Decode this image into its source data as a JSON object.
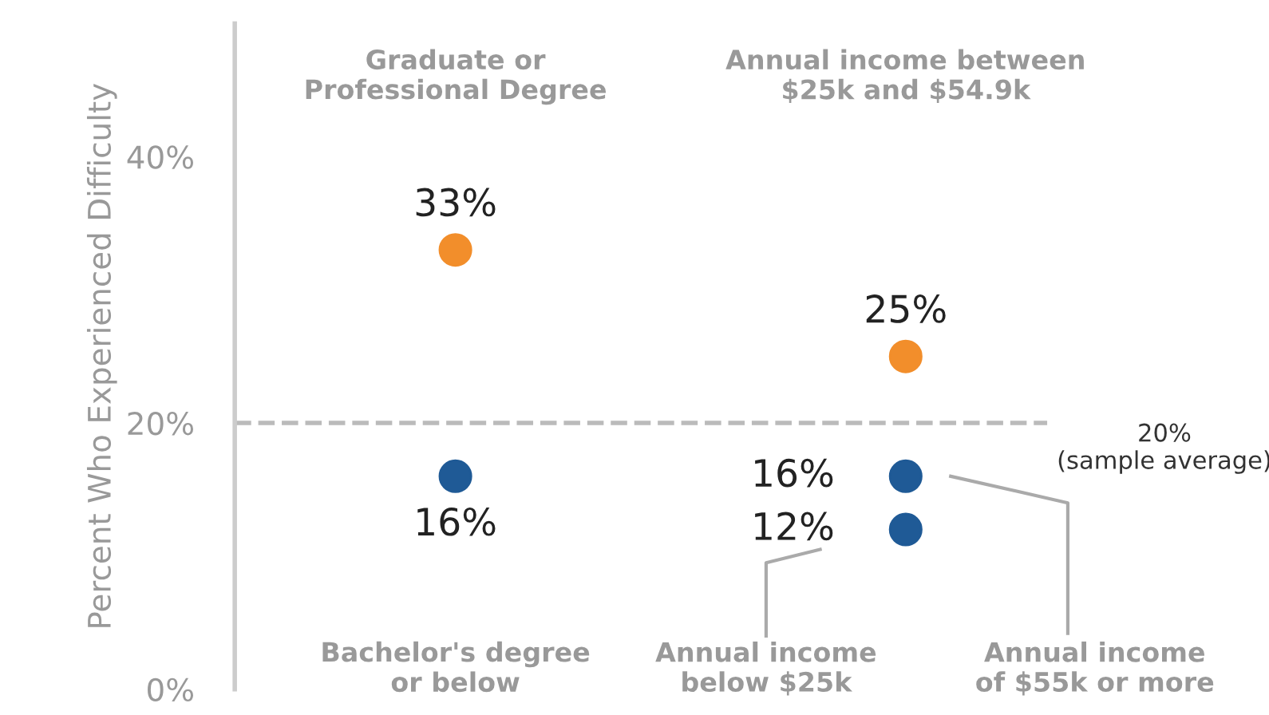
{
  "chart_data": {
    "type": "scatter",
    "ylabel": "Percent Who Experienced Difficulty",
    "categories": [
      null,
      null
    ],
    "series": [
      {
        "color": "#f28e2b",
        "values": [
          33,
          25
        ],
        "value_labels": [
          "33%",
          "25%"
        ]
      },
      {
        "color": "#1f5a96",
        "values": [
          16,
          16
        ],
        "value_labels": [
          "16%",
          "16%"
        ]
      },
      {
        "color": "#1f5a96",
        "values": [
          null,
          12
        ],
        "value_labels": [
          null,
          "12%"
        ]
      }
    ],
    "ylim": [
      0,
      50
    ],
    "yticks": [
      {
        "value": 0,
        "label": "0%"
      },
      {
        "value": 20,
        "label": "20%"
      },
      {
        "value": 40,
        "label": "40%"
      }
    ],
    "ref_lines": [
      {
        "axis": "y",
        "value": 20,
        "label": "20%\n(sample average)",
        "color": "#bbbbbb",
        "line_style": "dashed"
      }
    ],
    "annotations": [
      "Graduate or\nProfessional Degree",
      "Bachelor's degree\nor below",
      "Annual income between\n$25k and $54.9k",
      "Annual income\nbelow $25k",
      "Annual income\nof $55k or more"
    ],
    "grid": false,
    "marker": "circle"
  }
}
